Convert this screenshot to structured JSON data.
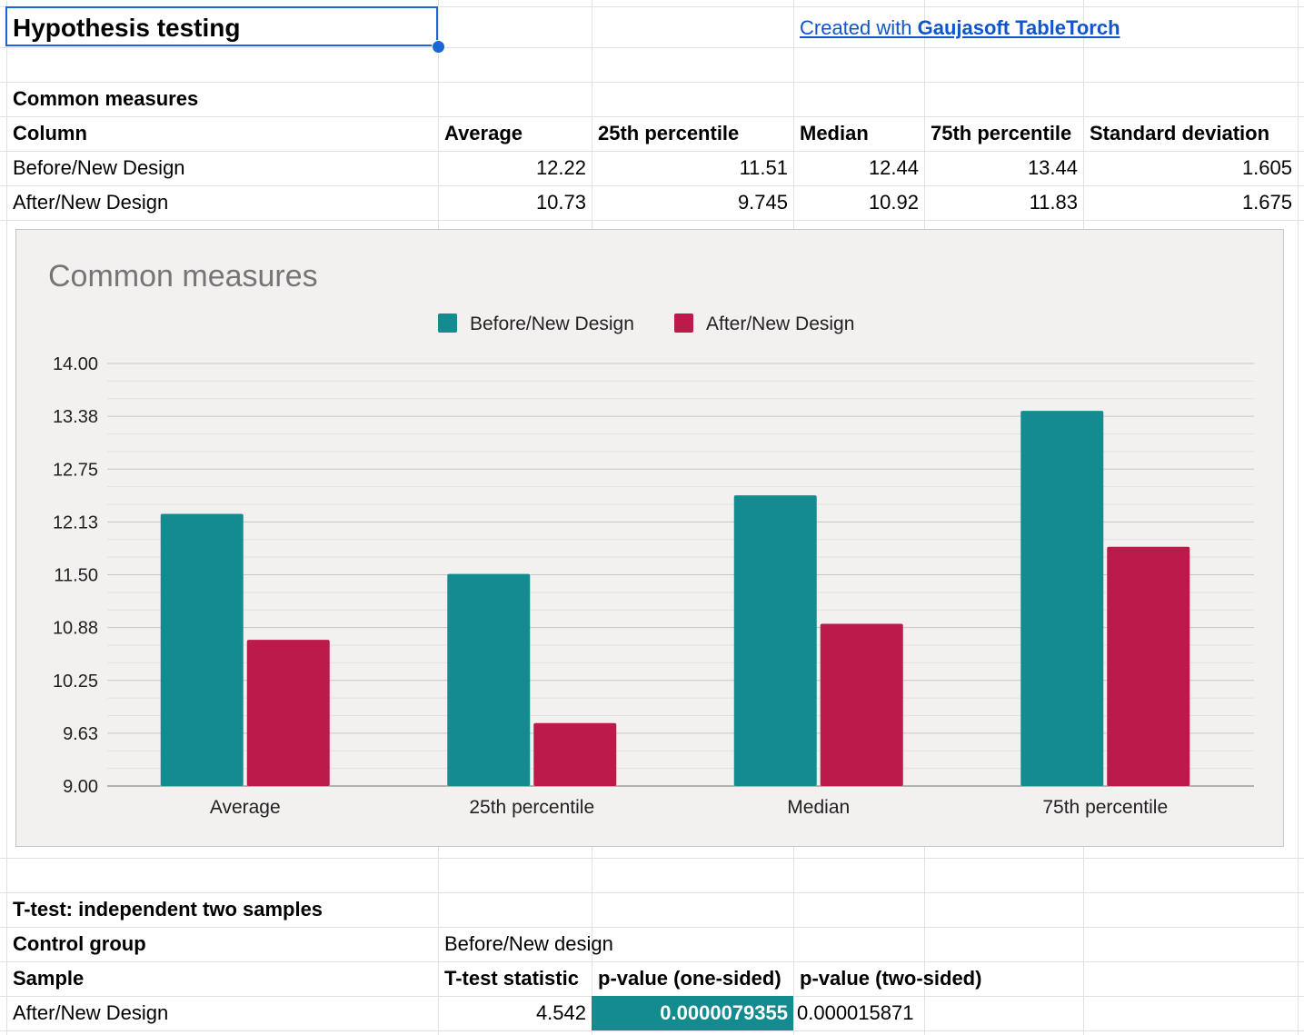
{
  "sheet": {
    "title": "Hypothesis testing",
    "credit_prefix": "Created with ",
    "credit_brand": "Gaujasoft TableTorch"
  },
  "common": {
    "heading": "Common measures",
    "headers": [
      "Column",
      "Average",
      "25th percentile",
      "Median",
      "75th percentile",
      "Standard deviation"
    ],
    "rows": [
      [
        "Before/New Design",
        "12.22",
        "11.51",
        "12.44",
        "13.44",
        "1.605"
      ],
      [
        "After/New Design",
        "10.73",
        "9.745",
        "10.92",
        "11.83",
        "1.675"
      ]
    ]
  },
  "ttest": {
    "heading": "T-test: independent two samples",
    "control_label": "Control group",
    "control_value": "Before/New design",
    "headers": [
      "Sample",
      "T-test statistic",
      "p-value (one-sided)",
      "p-value (two-sided)"
    ],
    "row": [
      "After/New Design",
      "4.542",
      "0.0000079355",
      "0.000015871"
    ]
  },
  "colors": {
    "before": "#148b8e",
    "after": "#bb1b4a",
    "chart_bg": "#f3f0f0",
    "link": "#1155cc"
  },
  "chart_data": {
    "type": "bar",
    "title": "Common measures",
    "categories": [
      "Average",
      "25th percentile",
      "Median",
      "75th percentile"
    ],
    "series": [
      {
        "name": "Before/New Design",
        "values": [
          12.22,
          11.51,
          12.44,
          13.44
        ]
      },
      {
        "name": "After/New Design",
        "values": [
          10.73,
          9.745,
          10.92,
          11.83
        ]
      }
    ],
    "yticks": [
      "14.00",
      "13.38",
      "12.75",
      "12.13",
      "11.50",
      "10.88",
      "10.25",
      "9.63",
      "9.00"
    ],
    "ylim": [
      9.0,
      14.0
    ],
    "legend_position": "top",
    "grid": true
  }
}
